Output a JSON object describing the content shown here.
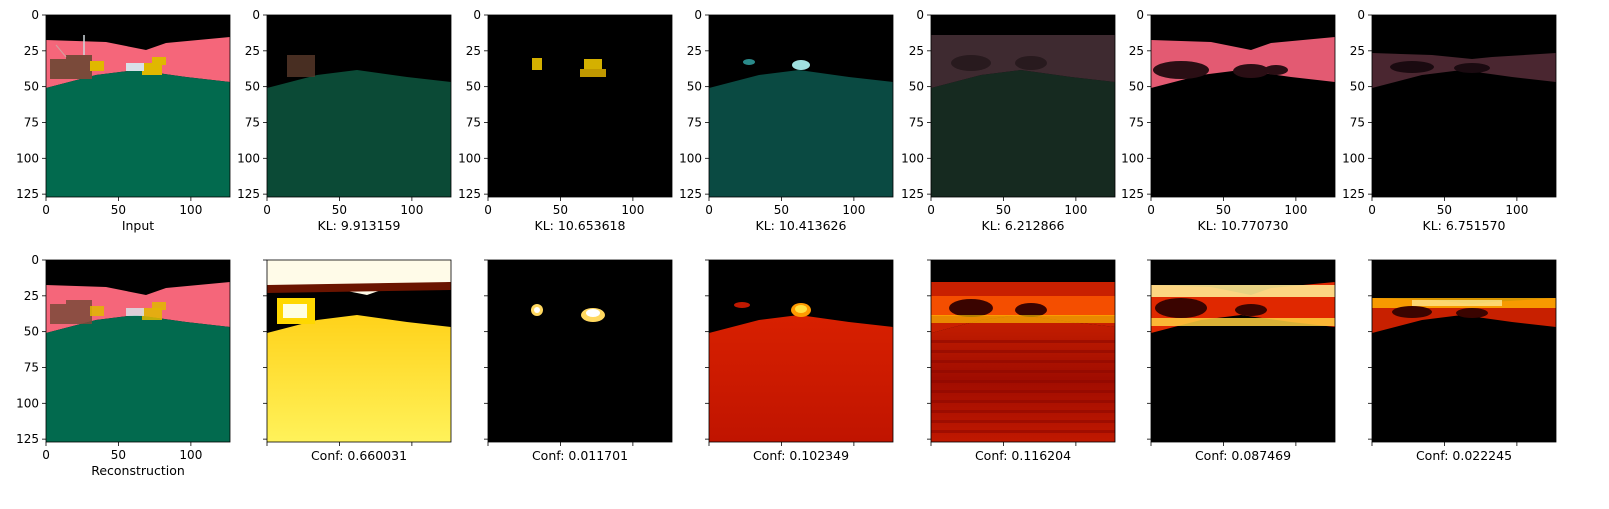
{
  "chart_data": {
    "type": "image-grid",
    "layout": {
      "rows": 2,
      "cols": 7
    },
    "axes": {
      "x_ticks": [
        "0",
        "50",
        "100"
      ],
      "y_ticks": [
        "0",
        "25",
        "50",
        "75",
        "100",
        "125"
      ],
      "xlim": [
        0,
        127
      ],
      "ylim": [
        127,
        0
      ]
    },
    "top_row": [
      {
        "label": "Input",
        "content": "segmentation-input"
      },
      {
        "label": "KL: 9.913159",
        "content": "slot-ground"
      },
      {
        "label": "KL: 10.653618",
        "content": "slot-yellow-objects"
      },
      {
        "label": "KL: 10.413626",
        "content": "slot-ground-cyan"
      },
      {
        "label": "KL: 6.212866",
        "content": "slot-faint-sky"
      },
      {
        "label": "KL: 10.770730",
        "content": "slot-sky"
      },
      {
        "label": "KL: 6.751570",
        "content": "slot-horizon"
      }
    ],
    "bottom_row": [
      {
        "label": "Reconstruction",
        "content": "segmentation-reconstruction"
      },
      {
        "label": "Conf: 0.660031",
        "conf": 0.660031,
        "colormap": "hot"
      },
      {
        "label": "Conf: 0.011701",
        "conf": 0.011701,
        "colormap": "hot"
      },
      {
        "label": "Conf: 0.102349",
        "conf": 0.102349,
        "colormap": "hot"
      },
      {
        "label": "Conf: 0.116204",
        "conf": 0.116204,
        "colormap": "hot"
      },
      {
        "label": "Conf: 0.087469",
        "conf": 0.087469,
        "colormap": "hot"
      },
      {
        "label": "Conf: 0.022245",
        "conf": 0.022245,
        "colormap": "hot"
      }
    ],
    "colors": {
      "sky": "#000000",
      "building": "#f5667a",
      "ground": "#026a4e",
      "object_brown": "#7a4a3a",
      "object_yellow": "#e0b800",
      "object_white": "#d8e0e8"
    }
  }
}
